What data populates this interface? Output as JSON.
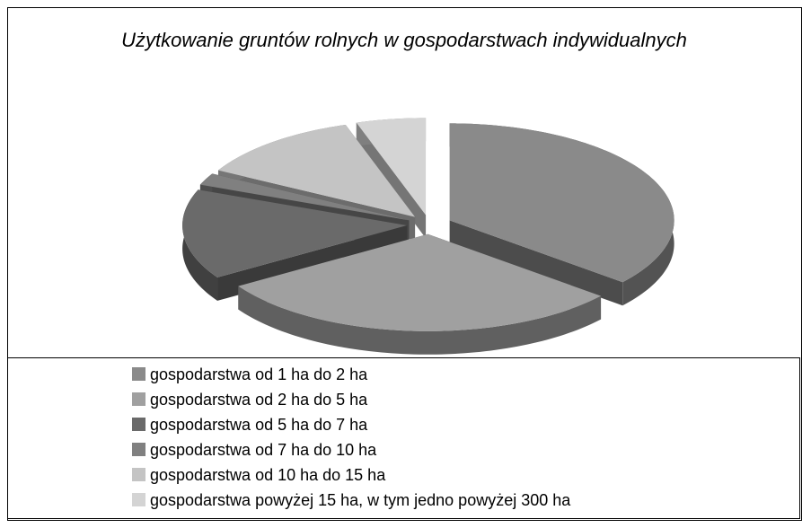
{
  "chart_data": {
    "type": "pie",
    "title": "Użytkowanie gruntów rolnych w gospodarstwach indywidualnych",
    "categories": [
      "gospodarstwa od 1 ha do 2 ha",
      "gospodarstwa od 2 ha do 5 ha",
      "gospodarstwa od 5 ha do 7 ha",
      "gospodarstwa od 7 ha do 10 ha",
      "gospodarstwa od 10 ha do 15 ha",
      "gospodarstwa powyżej 15 ha, w tym jedno powyżej 300 ha"
    ],
    "values": [
      36,
      30,
      15,
      2,
      12,
      5
    ],
    "colors": [
      "#8a8a8a",
      "#a0a0a0",
      "#6a6a6a",
      "#808080",
      "#c4c4c4",
      "#d4d4d4"
    ],
    "legend": "bottom"
  }
}
